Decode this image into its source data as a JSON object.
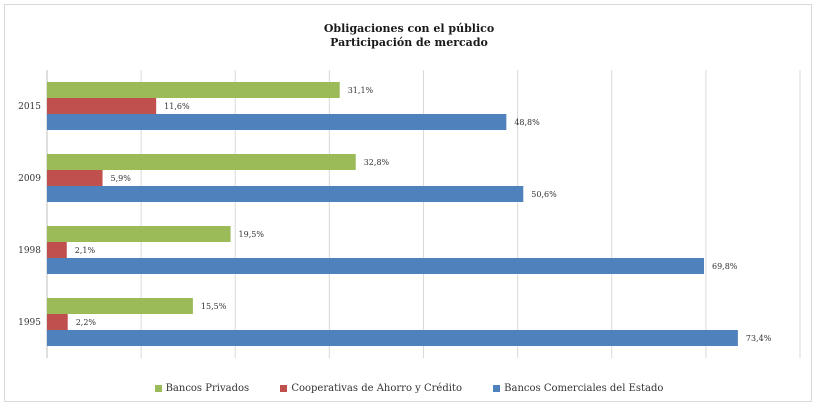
{
  "chart_data": {
    "type": "bar",
    "orientation": "horizontal",
    "title": "Obligaciones con el público",
    "subtitle": "Participación de mercado",
    "categories": [
      "2015",
      "2009",
      "1998",
      "1995"
    ],
    "series": [
      {
        "name": "Bancos Privados",
        "color": "#9bbb59",
        "values": [
          31.1,
          32.8,
          19.5,
          15.5
        ],
        "labels": [
          "31,1%",
          "32,8%",
          "19,5%",
          "15,5%"
        ]
      },
      {
        "name": "Cooperativas de Ahorro y Crédito",
        "color": "#c0504d",
        "values": [
          11.6,
          5.9,
          2.1,
          2.2
        ],
        "labels": [
          "11,6%",
          "5,9%",
          "2,1%",
          "2,2%"
        ]
      },
      {
        "name": "Bancos Comerciales del Estado",
        "color": "#4f81bd",
        "values": [
          48.8,
          50.6,
          69.8,
          73.4
        ],
        "labels": [
          "48,8%",
          "50,6%",
          "69,8%",
          "73,4%"
        ]
      }
    ],
    "xlim": [
      0,
      80
    ],
    "grid": true,
    "legend_position": "bottom"
  }
}
